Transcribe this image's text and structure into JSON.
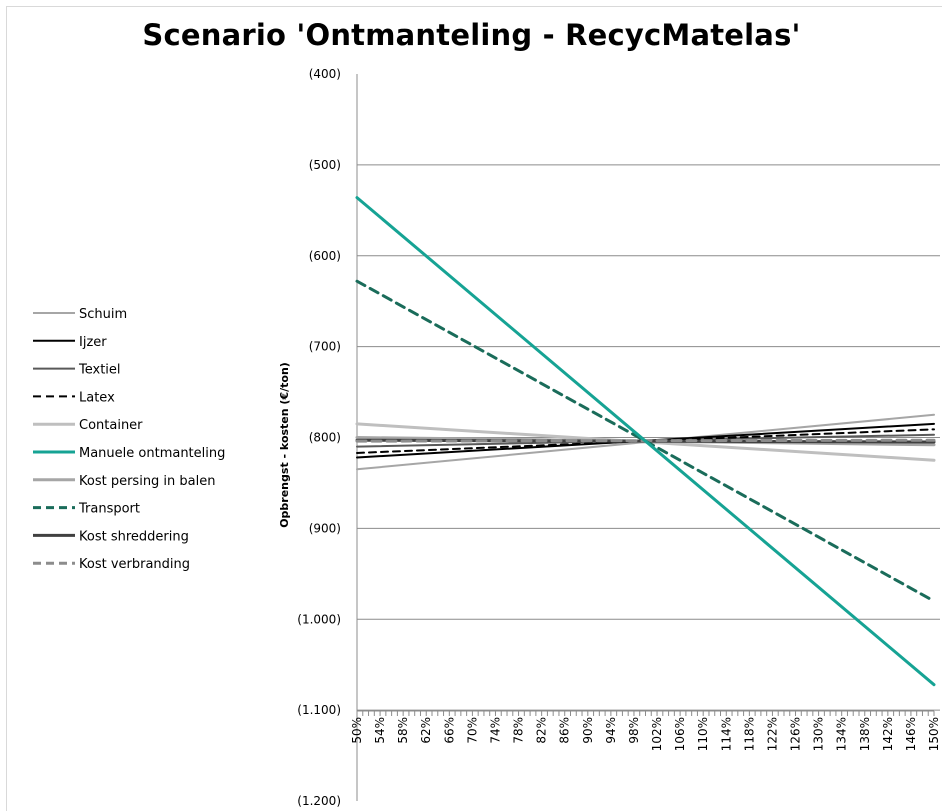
{
  "chart_data": {
    "type": "line",
    "title": "Scenario 'Ontmanteling - RecycMatelas'",
    "ylabel": "Opbrengst - kosten (€/ton)",
    "xlabel": "",
    "ylim": [
      -1200,
      -400
    ],
    "y_reversed": true,
    "y_ticks": [
      -400,
      -500,
      -600,
      -700,
      -800,
      -900,
      -1000,
      -1100,
      -1200
    ],
    "y_tick_labels": [
      "(400)",
      "(500)",
      "(600)",
      "(700)",
      "(800)",
      "(900)",
      "(1.000)",
      "(1.100)",
      "(1.200)"
    ],
    "x_start": 50,
    "x_end": 150,
    "x_unit": "%",
    "x_tick_labels": [
      "50%",
      "54%",
      "58%",
      "62%",
      "66%",
      "70%",
      "74%",
      "78%",
      "82%",
      "86%",
      "90%",
      "94%",
      "98%",
      "102%",
      "106%",
      "110%",
      "114%",
      "118%",
      "122%",
      "126%",
      "130%",
      "134%",
      "138%",
      "142%",
      "146%",
      "150%"
    ],
    "grid": "horizontal",
    "legend_position": "left",
    "series": [
      {
        "name": "Schuim",
        "color": "#a6a6a6",
        "dash": "solid",
        "width": 2,
        "y_at_50": -835,
        "y_at_150": -775
      },
      {
        "name": "Ijzer",
        "color": "#000000",
        "dash": "solid",
        "width": 2,
        "y_at_50": -822,
        "y_at_150": -785
      },
      {
        "name": "Textiel",
        "color": "#595959",
        "dash": "solid",
        "width": 2,
        "y_at_50": -810,
        "y_at_150": -797
      },
      {
        "name": "Latex",
        "color": "#000000",
        "dash": "dashed",
        "width": 2,
        "y_at_50": -817,
        "y_at_150": -791
      },
      {
        "name": "Container",
        "color": "#bfbfbf",
        "dash": "solid",
        "width": 3,
        "y_at_50": -785,
        "y_at_150": -825
      },
      {
        "name": "Manuele ontmanteling",
        "color": "#16a394",
        "dash": "solid",
        "width": 3,
        "y_at_50": -536,
        "y_at_150": -1072
      },
      {
        "name": "Kost persing in balen",
        "color": "#a6a6a6",
        "dash": "solid",
        "width": 3,
        "y_at_50": -800,
        "y_at_150": -808
      },
      {
        "name": "Transport",
        "color": "#1a6c5a",
        "dash": "dashed",
        "width": 3,
        "y_at_50": -628,
        "y_at_150": -980
      },
      {
        "name": "Kost shreddering",
        "color": "#404040",
        "dash": "solid",
        "width": 3,
        "y_at_50": -803,
        "y_at_150": -805
      },
      {
        "name": "Kost verbranding",
        "color": "#8c8c8c",
        "dash": "dashed",
        "width": 3,
        "y_at_50": -804,
        "y_at_150": -803
      }
    ]
  }
}
